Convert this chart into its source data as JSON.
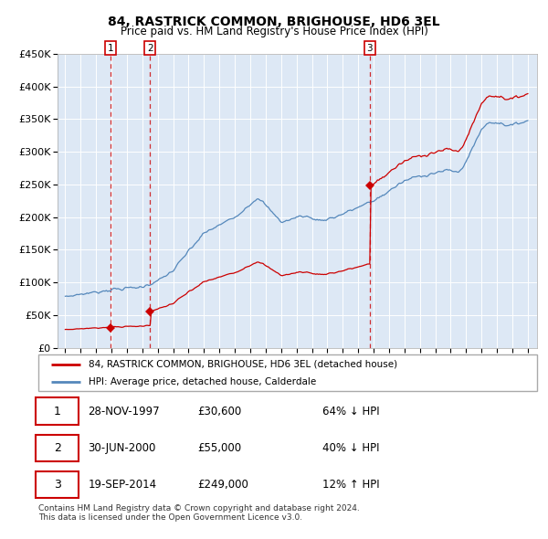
{
  "title": "84, RASTRICK COMMON, BRIGHOUSE, HD6 3EL",
  "subtitle": "Price paid vs. HM Land Registry's House Price Index (HPI)",
  "sale_dates_decimal": [
    1997.9167,
    2000.5,
    2014.75
  ],
  "sale_prices": [
    30600,
    55000,
    249000
  ],
  "sale_labels": [
    "1",
    "2",
    "3"
  ],
  "legend_red": "84, RASTRICK COMMON, BRIGHOUSE, HD6 3EL (detached house)",
  "legend_blue": "HPI: Average price, detached house, Calderdale",
  "table_rows": [
    [
      "1",
      "28-NOV-1997",
      "£30,600",
      "64% ↓ HPI"
    ],
    [
      "2",
      "30-JUN-2000",
      "£55,000",
      "40% ↓ HPI"
    ],
    [
      "3",
      "19-SEP-2014",
      "£249,000",
      "12% ↑ HPI"
    ]
  ],
  "footer": "Contains HM Land Registry data © Crown copyright and database right 2024.\nThis data is licensed under the Open Government Licence v3.0.",
  "red_color": "#cc0000",
  "blue_color": "#5588bb",
  "dashed_color": "#cc0000",
  "background_color": "#ffffff",
  "grid_color": "#cccccc",
  "chart_bg": "#dde8f5",
  "ylim": [
    0,
    450000
  ],
  "yticks": [
    0,
    50000,
    100000,
    150000,
    200000,
    250000,
    300000,
    350000,
    400000,
    450000
  ],
  "x_start_year": 1995,
  "x_end_year": 2025,
  "hpi_waypoints_x": [
    1995.0,
    1996.0,
    1997.0,
    1998.0,
    1999.0,
    2000.0,
    2001.0,
    2002.0,
    2003.0,
    2004.0,
    2005.0,
    2006.0,
    2007.0,
    2007.5,
    2008.0,
    2008.5,
    2009.0,
    2009.5,
    2010.0,
    2010.5,
    2011.0,
    2011.5,
    2012.0,
    2012.5,
    2013.0,
    2013.5,
    2014.0,
    2014.5,
    2015.0,
    2015.5,
    2016.0,
    2016.5,
    2017.0,
    2017.5,
    2018.0,
    2018.5,
    2019.0,
    2019.5,
    2020.0,
    2020.5,
    2021.0,
    2021.5,
    2022.0,
    2022.5,
    2023.0,
    2023.5,
    2024.0,
    2024.5,
    2025.0
  ],
  "hpi_waypoints_y": [
    78000,
    82000,
    85000,
    89000,
    91000,
    93000,
    102000,
    118000,
    148000,
    175000,
    188000,
    200000,
    220000,
    230000,
    218000,
    205000,
    193000,
    195000,
    200000,
    202000,
    198000,
    195000,
    197000,
    200000,
    205000,
    210000,
    215000,
    220000,
    225000,
    232000,
    240000,
    248000,
    255000,
    260000,
    263000,
    265000,
    268000,
    270000,
    272000,
    268000,
    285000,
    310000,
    335000,
    345000,
    345000,
    342000,
    340000,
    345000,
    348000
  ]
}
